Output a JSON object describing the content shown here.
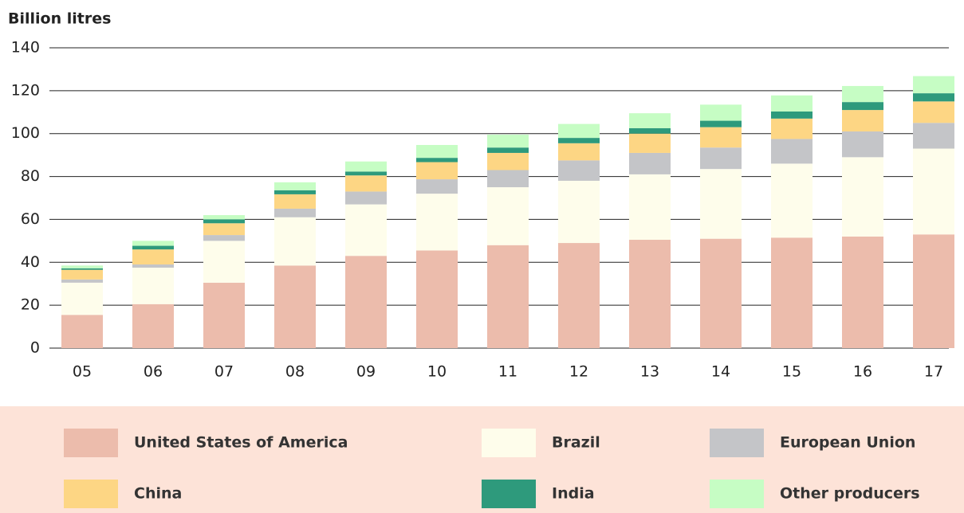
{
  "chart_data": {
    "type": "stacked_bar",
    "y_label": "Billion litres",
    "categories": [
      "05",
      "06",
      "07",
      "08",
      "09",
      "10",
      "11",
      "12",
      "13",
      "14",
      "15",
      "16",
      "17"
    ],
    "series": [
      {
        "name": "United States of America",
        "color": "#ecbcac",
        "values": [
          15.5,
          20.5,
          30.5,
          38.5,
          43,
          45.5,
          48,
          49,
          50.5,
          51,
          51.5,
          52,
          53
        ]
      },
      {
        "name": "Brazil",
        "color": "#fefdeb",
        "values": [
          15,
          17,
          19.5,
          22.5,
          24,
          26.5,
          27,
          29,
          30.5,
          32.5,
          34.5,
          37,
          40
        ]
      },
      {
        "name": "European Union",
        "color": "#c4c5c8",
        "values": [
          1.5,
          1.5,
          2.7,
          4,
          6,
          6.7,
          8,
          9.5,
          10,
          10,
          11.5,
          12,
          12
        ]
      },
      {
        "name": "China",
        "color": "#fdd684",
        "values": [
          4.5,
          7,
          5.5,
          6.7,
          7.5,
          8,
          8,
          8,
          9,
          9.5,
          9.5,
          10,
          10
        ]
      },
      {
        "name": "India",
        "color": "#2e9a7c",
        "values": [
          0.7,
          1.7,
          1.8,
          1.9,
          1.8,
          2,
          2.5,
          2.5,
          2.5,
          3,
          3.3,
          3.7,
          3.8
        ]
      },
      {
        "name": "Other producers",
        "color": "#c6fdc4",
        "values": [
          1.3,
          2.3,
          2,
          3.7,
          4.7,
          6,
          6,
          6.5,
          7,
          7.5,
          7.5,
          7.5,
          8
        ]
      }
    ],
    "ylim": [
      0,
      140
    ],
    "yticks": [
      0,
      20,
      40,
      60,
      80,
      100,
      120,
      140
    ],
    "grid": true
  }
}
